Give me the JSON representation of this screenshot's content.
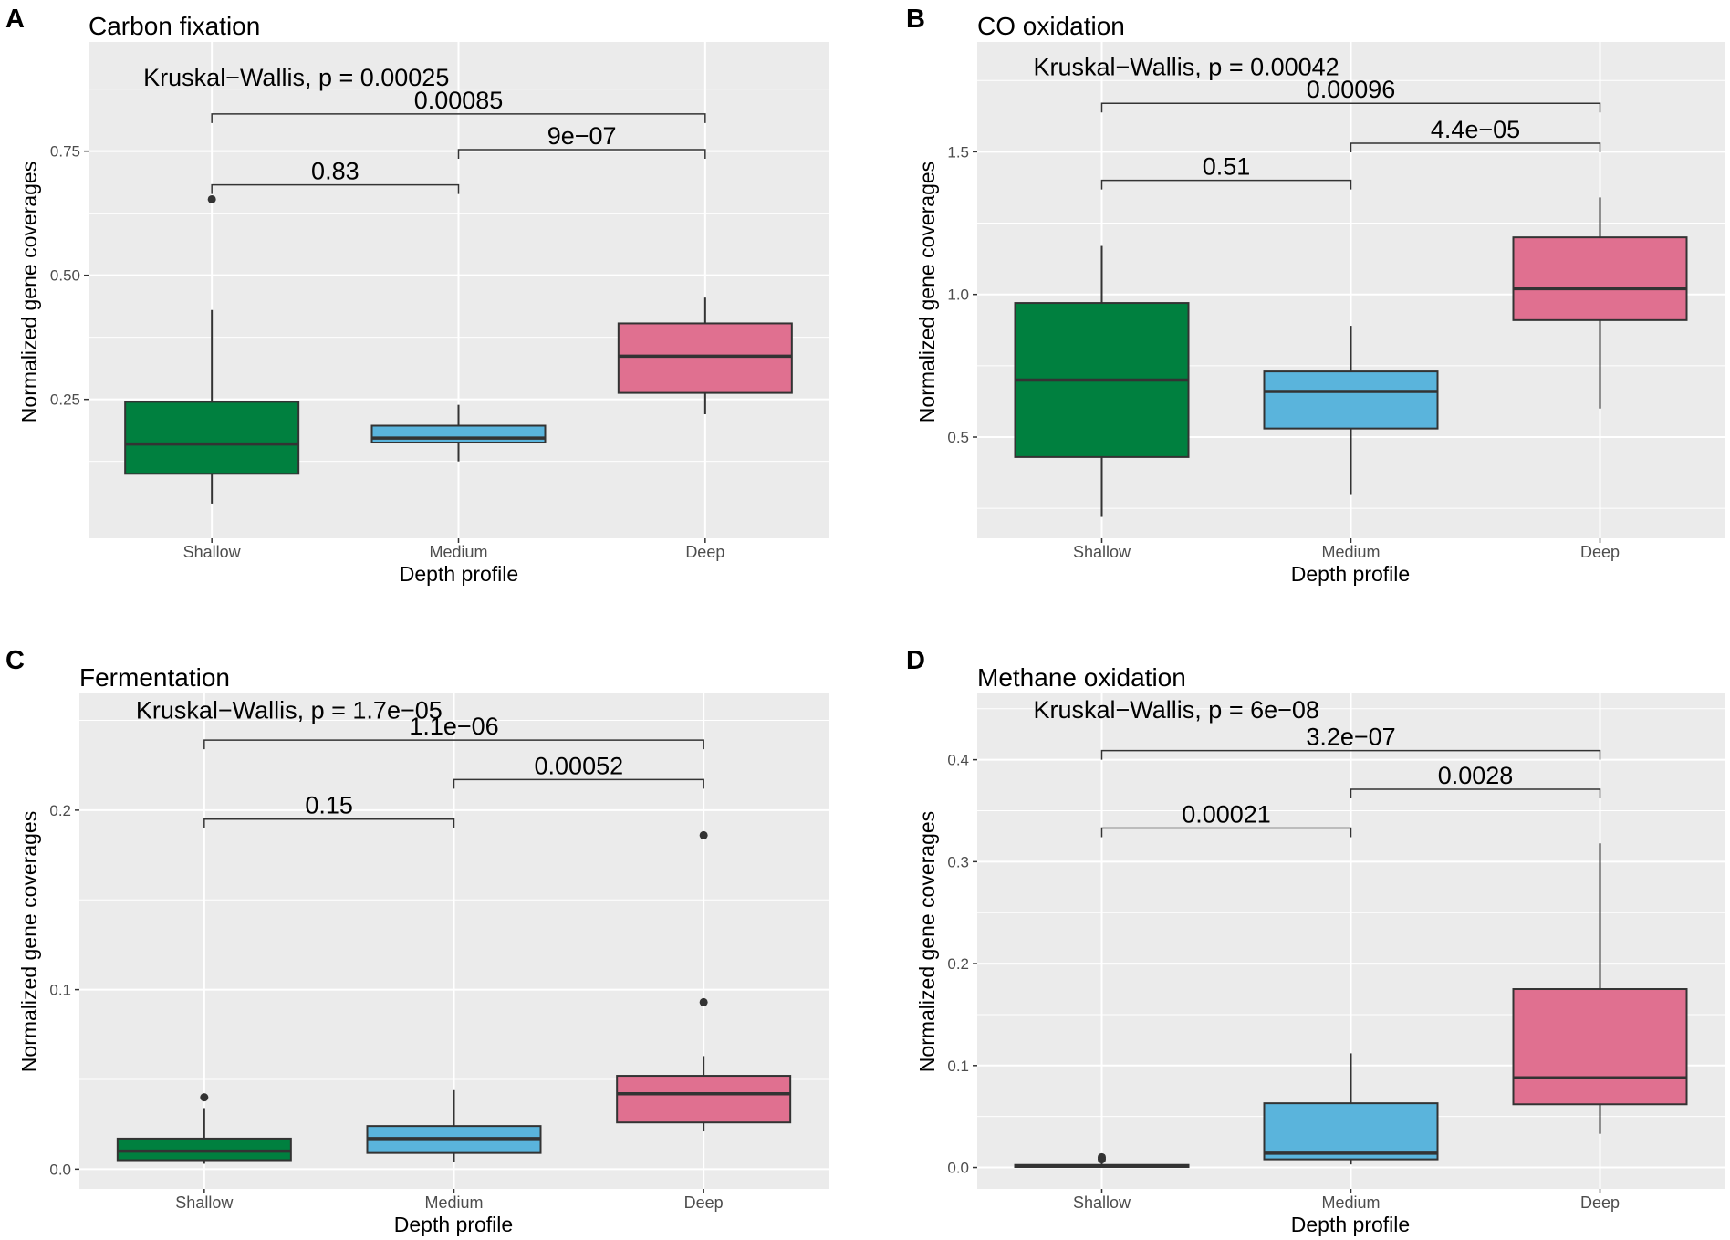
{
  "figure": {
    "xlabel": "Depth profile",
    "ylabel": "Normalized gene coverages",
    "categories": [
      "Shallow",
      "Medium",
      "Deep"
    ],
    "colors": {
      "Shallow": "#00803f",
      "Medium": "#5ab4dc",
      "Deep": "#e07090"
    },
    "panel_bg": "#ebebeb",
    "grid_color": "#ffffff",
    "box_stroke": "#333333",
    "text_color": "#000000",
    "tick_color": "#4d4d4d"
  },
  "chart_data": [
    {
      "panel": "A",
      "type": "boxplot",
      "title": "Carbon fixation",
      "xlabel": "Depth profile",
      "ylabel": "Normalized gene coverages",
      "categories": [
        "Shallow",
        "Medium",
        "Deep"
      ],
      "ylim": [
        -0.03,
        0.97
      ],
      "yticks": [
        0.25,
        0.5,
        0.75
      ],
      "ytick_labels": [
        "0.25",
        "0.50",
        "0.75"
      ],
      "minor_yticks": [
        0.125,
        0.375,
        0.625,
        0.875
      ],
      "boxes": [
        {
          "category": "Shallow",
          "whisker_low": 0.04,
          "q1": 0.1,
          "median": 0.16,
          "q3": 0.245,
          "whisker_high": 0.43,
          "outliers": [
            0.653
          ]
        },
        {
          "category": "Medium",
          "whisker_low": 0.125,
          "q1": 0.163,
          "median": 0.172,
          "q3": 0.197,
          "whisker_high": 0.239,
          "outliers": []
        },
        {
          "category": "Deep",
          "whisker_low": 0.22,
          "q1": 0.263,
          "median": 0.337,
          "q3": 0.403,
          "whisker_high": 0.455,
          "outliers": []
        }
      ],
      "test_label": "Kruskal−Wallis, p = 0.00025",
      "test_y": 0.9,
      "comparisons": [
        {
          "from": "Shallow",
          "to": "Medium",
          "y": 0.682,
          "label": "0.83"
        },
        {
          "from": "Medium",
          "to": "Deep",
          "y": 0.753,
          "label": "9e−07"
        },
        {
          "from": "Shallow",
          "to": "Deep",
          "y": 0.825,
          "label": "0.00085"
        }
      ]
    },
    {
      "panel": "B",
      "type": "boxplot",
      "title": "CO oxidation",
      "xlabel": "Depth profile",
      "ylabel": "Normalized gene coverages",
      "categories": [
        "Shallow",
        "Medium",
        "Deep"
      ],
      "ylim": [
        0.145,
        1.885
      ],
      "yticks": [
        0.5,
        1.0,
        1.5
      ],
      "ytick_labels": [
        "0.5",
        "1.0",
        "1.5"
      ],
      "minor_yticks": [
        0.25,
        0.75,
        1.25,
        1.75
      ],
      "boxes": [
        {
          "category": "Shallow",
          "whisker_low": 0.22,
          "q1": 0.43,
          "median": 0.7,
          "q3": 0.97,
          "whisker_high": 1.17,
          "outliers": []
        },
        {
          "category": "Medium",
          "whisker_low": 0.3,
          "q1": 0.53,
          "median": 0.66,
          "q3": 0.73,
          "whisker_high": 0.89,
          "outliers": []
        },
        {
          "category": "Deep",
          "whisker_low": 0.6,
          "q1": 0.91,
          "median": 1.02,
          "q3": 1.2,
          "whisker_high": 1.34,
          "outliers": []
        }
      ],
      "test_label": "Kruskal−Wallis, p = 0.00042",
      "test_y": 1.8,
      "comparisons": [
        {
          "from": "Shallow",
          "to": "Medium",
          "y": 1.4,
          "label": "0.51"
        },
        {
          "from": "Medium",
          "to": "Deep",
          "y": 1.53,
          "label": "4.4e−05"
        },
        {
          "from": "Shallow",
          "to": "Deep",
          "y": 1.67,
          "label": "0.00096"
        }
      ]
    },
    {
      "panel": "C",
      "type": "boxplot",
      "title": "Fermentation",
      "xlabel": "Depth profile",
      "ylabel": "Normalized gene coverages",
      "categories": [
        "Shallow",
        "Medium",
        "Deep"
      ],
      "ylim": [
        -0.011,
        0.265
      ],
      "yticks": [
        0.0,
        0.1,
        0.2
      ],
      "ytick_labels": [
        "0.0",
        "0.1",
        "0.2"
      ],
      "minor_yticks": [
        0.05,
        0.15,
        0.25
      ],
      "boxes": [
        {
          "category": "Shallow",
          "whisker_low": 0.003,
          "q1": 0.005,
          "median": 0.01,
          "q3": 0.017,
          "whisker_high": 0.034,
          "outliers": [
            0.04
          ]
        },
        {
          "category": "Medium",
          "whisker_low": 0.004,
          "q1": 0.009,
          "median": 0.017,
          "q3": 0.024,
          "whisker_high": 0.044,
          "outliers": []
        },
        {
          "category": "Deep",
          "whisker_low": 0.021,
          "q1": 0.026,
          "median": 0.042,
          "q3": 0.052,
          "whisker_high": 0.063,
          "outliers": [
            0.093,
            0.186
          ]
        }
      ],
      "test_label": "Kruskal−Wallis, p = 1.7e−05",
      "test_y": 0.256,
      "comparisons": [
        {
          "from": "Shallow",
          "to": "Medium",
          "y": 0.195,
          "label": "0.15"
        },
        {
          "from": "Medium",
          "to": "Deep",
          "y": 0.217,
          "label": "0.00052"
        },
        {
          "from": "Shallow",
          "to": "Deep",
          "y": 0.239,
          "label": "1.1e−06"
        }
      ]
    },
    {
      "panel": "D",
      "type": "boxplot",
      "title": "Methane oxidation",
      "xlabel": "Depth profile",
      "ylabel": "Normalized gene coverages",
      "categories": [
        "Shallow",
        "Medium",
        "Deep"
      ],
      "ylim": [
        -0.021,
        0.465
      ],
      "yticks": [
        0.0,
        0.1,
        0.2,
        0.3,
        0.4
      ],
      "ytick_labels": [
        "0.0",
        "0.1",
        "0.2",
        "0.3",
        "0.4"
      ],
      "minor_yticks": [
        0.05,
        0.15,
        0.25,
        0.35,
        0.45
      ],
      "boxes": [
        {
          "category": "Shallow",
          "whisker_low": 0.0,
          "q1": 0.0005,
          "median": 0.0015,
          "q3": 0.0025,
          "whisker_high": 0.005,
          "outliers": [
            0.008,
            0.01
          ]
        },
        {
          "category": "Medium",
          "whisker_low": 0.003,
          "q1": 0.008,
          "median": 0.014,
          "q3": 0.063,
          "whisker_high": 0.112,
          "outliers": []
        },
        {
          "category": "Deep",
          "whisker_low": 0.033,
          "q1": 0.062,
          "median": 0.088,
          "q3": 0.175,
          "whisker_high": 0.318,
          "outliers": []
        }
      ],
      "test_label": "Kruskal−Wallis, p = 6e−08",
      "test_y": 0.45,
      "comparisons": [
        {
          "from": "Shallow",
          "to": "Medium",
          "y": 0.333,
          "label": "0.00021"
        },
        {
          "from": "Medium",
          "to": "Deep",
          "y": 0.371,
          "label": "0.0028"
        },
        {
          "from": "Shallow",
          "to": "Deep",
          "y": 0.409,
          "label": "3.2e−07"
        }
      ]
    }
  ]
}
